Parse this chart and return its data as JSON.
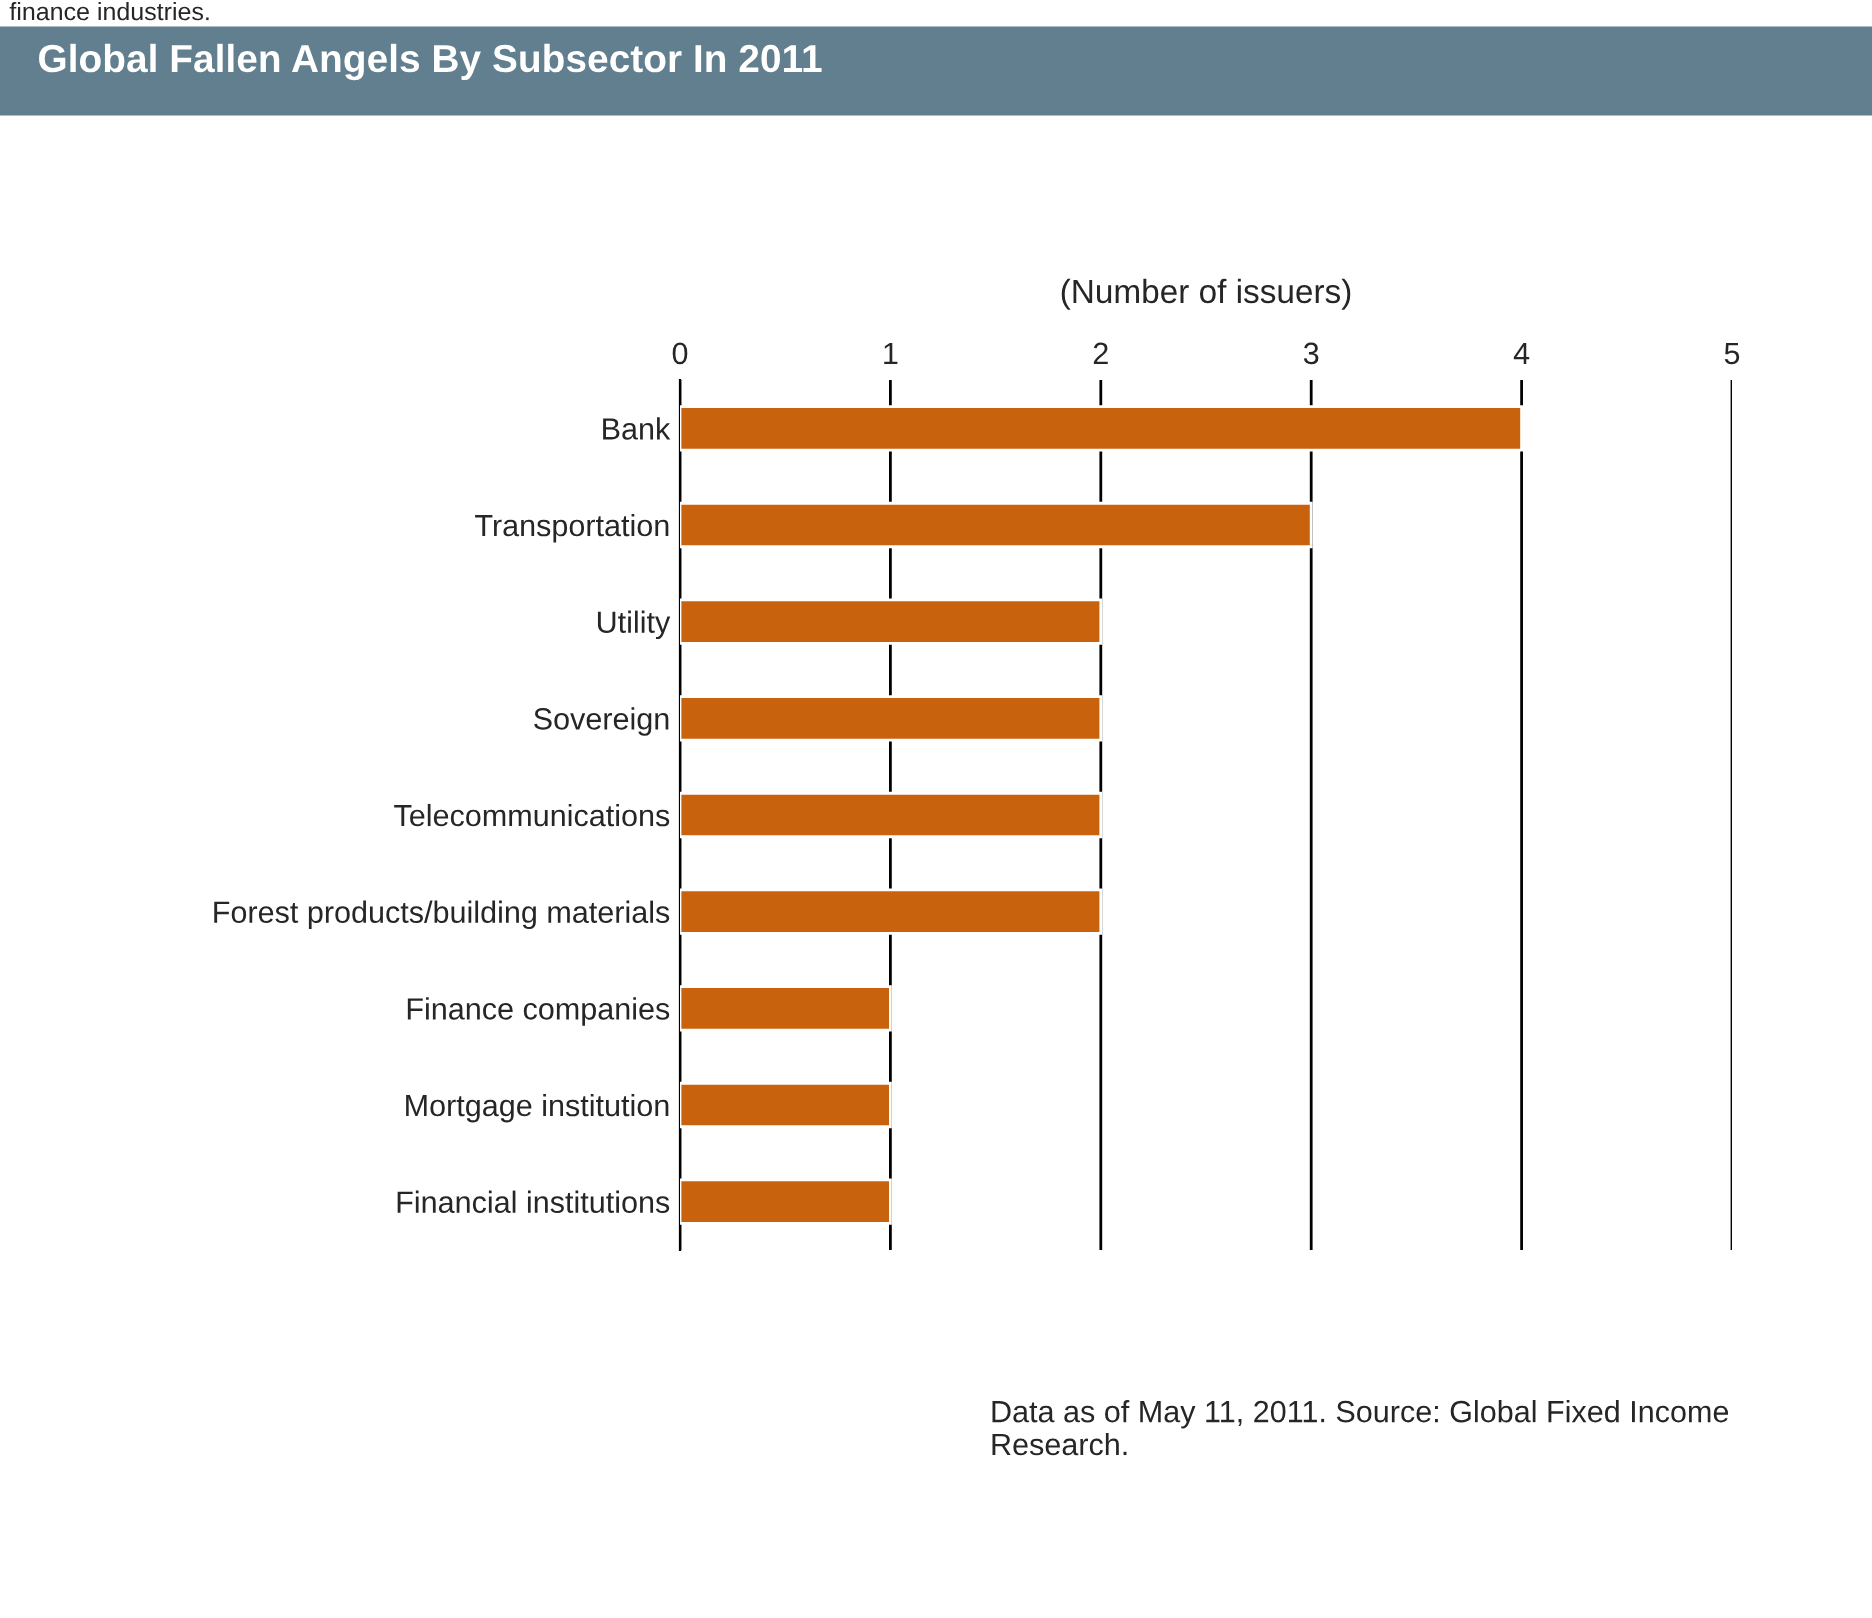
{
  "chart_data": {
    "type": "bar",
    "orientation": "horizontal",
    "title": "Global Fallen Angels By Subsector In 2011",
    "xlabel": "(Number of issuers)",
    "categories": [
      "Bank",
      "Transportation",
      "Utility",
      "Sovereign",
      "Telecommunications",
      "Forest products/building materials",
      "Finance companies",
      "Mortgage institution",
      "Financial institutions"
    ],
    "series": [
      {
        "color": "#c8620c",
        "values": [
          4,
          3,
          2,
          2,
          2,
          2,
          1,
          1,
          1
        ]
      }
    ],
    "xlim": [
      0,
      5
    ],
    "xticks": [
      0,
      1,
      2,
      3,
      4,
      5
    ],
    "grid": "x",
    "legend": false,
    "annotations": [
      "finance industries.",
      "Data as of May 11, 2011. Source: Global Fixed Income Research."
    ]
  }
}
